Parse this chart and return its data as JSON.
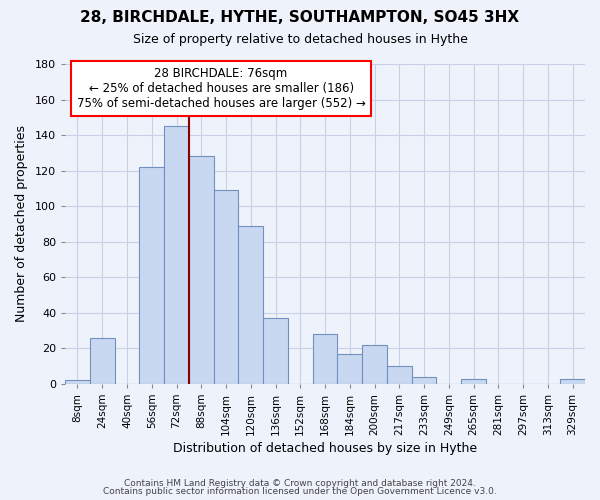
{
  "title": "28, BIRCHDALE, HYTHE, SOUTHAMPTON, SO45 3HX",
  "subtitle": "Size of property relative to detached houses in Hythe",
  "xlabel": "Distribution of detached houses by size in Hythe",
  "ylabel": "Number of detached properties",
  "bar_color": "#c8d8f0",
  "bar_edge_color": "#7090c0",
  "vline_color": "#8b0000",
  "categories": [
    "8sqm",
    "24sqm",
    "40sqm",
    "56sqm",
    "72sqm",
    "88sqm",
    "104sqm",
    "120sqm",
    "136sqm",
    "152sqm",
    "168sqm",
    "184sqm",
    "200sqm",
    "217sqm",
    "233sqm",
    "249sqm",
    "265sqm",
    "281sqm",
    "297sqm",
    "313sqm",
    "329sqm"
  ],
  "values": [
    2,
    26,
    0,
    122,
    145,
    128,
    109,
    89,
    37,
    0,
    28,
    17,
    22,
    10,
    4,
    0,
    3,
    0,
    0,
    0,
    3
  ],
  "ylim": [
    0,
    180
  ],
  "yticks": [
    0,
    20,
    40,
    60,
    80,
    100,
    120,
    140,
    160,
    180
  ],
  "annotation_line1": "28 BIRCHDALE: 76sqm",
  "annotation_line2": "← 25% of detached houses are smaller (186)",
  "annotation_line3": "75% of semi-detached houses are larger (552) →",
  "footer1": "Contains HM Land Registry data © Crown copyright and database right 2024.",
  "footer2": "Contains public sector information licensed under the Open Government Licence v3.0.",
  "background_color": "#eef2fb",
  "grid_color": "#c8d0e8",
  "vline_index": 4.25
}
